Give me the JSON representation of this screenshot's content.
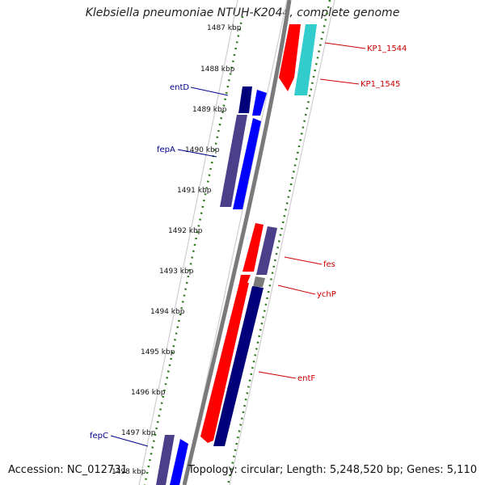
{
  "title": "Klebsiella pneumoniae NTUH-K2044, complete genome",
  "footer": {
    "accession": "Accession: NC_012731",
    "topology": "Topology: circular; Length: 5,248,520 bp; Genes: 5,110"
  },
  "ticks": [
    "1487 kbp",
    "1488 kbp",
    "1489 kbp",
    "1490 kbp",
    "1491 kbp",
    "1492 kbp",
    "1493 kbp",
    "1494 kbp",
    "1495 kbp",
    "1496 kbp",
    "1497 kbp",
    "1498 kbp"
  ],
  "gene_labels": {
    "KP1_1544": "KP1_1544",
    "KP1_1545": "KP1_1545",
    "entD": "entD",
    "fepA": "fepA",
    "fes": "fes",
    "ychP": "ychP",
    "entF": "entF",
    "fepC": "fepC"
  },
  "colors": {
    "backbone": "#7a7a7a",
    "forward_cds": "#ff0000",
    "reverse_cds": "#0000ff",
    "navy_cds": "#00007a",
    "slate_cds": "#4b3f8a",
    "cyan_cds": "#33cccc",
    "gc_dots": "#2a7a1a",
    "label_blue": "#00008b",
    "label_red": "#cc0000"
  }
}
